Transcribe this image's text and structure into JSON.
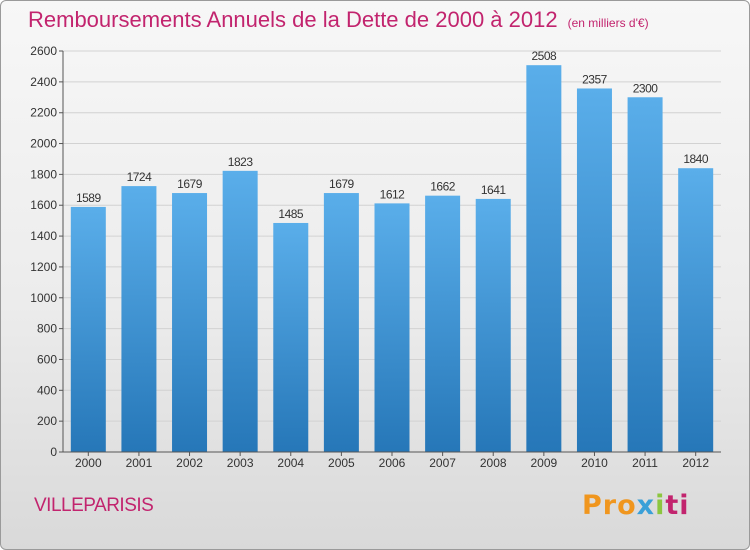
{
  "header": {
    "title": "Remboursements Annuels de la Dette de 2000 à 2012",
    "subtitle": "(en milliers d'€)"
  },
  "footer": {
    "city": "VILLEPARISIS",
    "logo_parts": [
      "Pro",
      "x",
      "i",
      "ti"
    ]
  },
  "colors": {
    "bar_top": "#5aaeea",
    "bar_bottom": "#2677b8",
    "title": "#c2246e",
    "grid": "#d2d2d2"
  },
  "chart_data": {
    "type": "bar",
    "title": "Remboursements Annuels de la Dette de 2000 à 2012",
    "subtitle": "(en milliers d'€)",
    "categories": [
      "2000",
      "2001",
      "2002",
      "2003",
      "2004",
      "2005",
      "2006",
      "2007",
      "2008",
      "2009",
      "2010",
      "2011",
      "2012"
    ],
    "values": [
      1589,
      1724,
      1679,
      1823,
      1485,
      1679,
      1612,
      1662,
      1641,
      2508,
      2357,
      2300,
      1840
    ],
    "ylim": [
      0,
      2600
    ],
    "yticks": [
      0,
      200,
      400,
      600,
      800,
      1000,
      1200,
      1400,
      1600,
      1800,
      2000,
      2200,
      2400,
      2600
    ],
    "grid": true,
    "data_labels": true
  }
}
